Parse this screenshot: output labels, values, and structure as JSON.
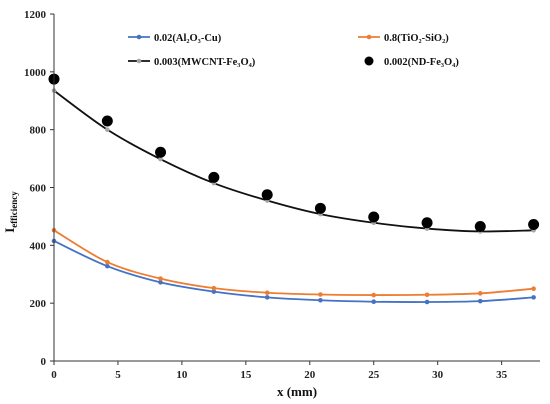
{
  "chart_data": {
    "type": "line",
    "title": "",
    "xlabel": "x (mm)",
    "ylabel": {
      "main": "I",
      "sub": "efficiency"
    },
    "xlim": [
      0,
      38
    ],
    "ylim": [
      0,
      1200
    ],
    "xticks": [
      0,
      5,
      10,
      15,
      20,
      25,
      30,
      35
    ],
    "yticks": [
      0,
      200,
      400,
      600,
      800,
      1000,
      1200
    ],
    "grid": false,
    "legend_position": "top",
    "x": [
      0,
      4.17,
      8.33,
      12.5,
      16.67,
      20.83,
      25.0,
      29.17,
      33.33,
      37.5
    ],
    "series": [
      {
        "name": "0.02(Al₂O₃-Cu)",
        "color": "#4472C4",
        "style": "line-markers",
        "values": [
          415,
          328,
          272,
          240,
          220,
          210,
          205,
          204,
          207,
          220
        ]
      },
      {
        "name": "0.8(TiO₂-SiO₂)",
        "color": "#ED7D31",
        "style": "line-markers",
        "values": [
          452,
          342,
          285,
          252,
          236,
          230,
          228,
          229,
          234,
          250
        ]
      },
      {
        "name": "0.003(MWCNT-Fe₃O₄)",
        "color": "#111111",
        "marker_color": "#A5A5A5",
        "style": "line-markers",
        "values": [
          935,
          800,
          698,
          615,
          555,
          508,
          478,
          458,
          448,
          452
        ]
      },
      {
        "name": "0.002(ND-Fe₃O₄)",
        "color": "#000000",
        "style": "markers",
        "values": [
          975,
          830,
          722,
          635,
          575,
          528,
          498,
          478,
          465,
          472
        ]
      }
    ]
  }
}
